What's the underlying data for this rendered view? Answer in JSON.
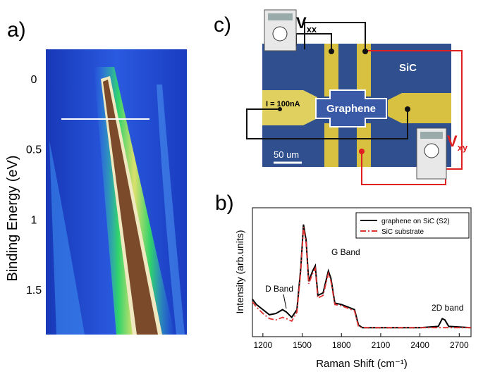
{
  "panel_a": {
    "label": "a)",
    "y_title": "Binding Energy (eV)",
    "ylim": [
      -0.21,
      1.82
    ],
    "yticks": [
      0,
      0.5,
      1,
      1.5
    ]
  },
  "panel_c": {
    "label": "c)",
    "vxx": {
      "symbol": "V",
      "subscript": "xx"
    },
    "vxy": {
      "symbol": "V",
      "subscript": "xy"
    },
    "substrate": "SiC",
    "sample": "Graphene",
    "current": "I = 100nA",
    "scale_bar": "50 um"
  },
  "chart_data": {
    "type": "line",
    "label": "b)",
    "x_label": "Raman Shift (cm⁻¹)",
    "y_label": "Intensity (arb.units)",
    "x": [
      1120,
      1150,
      1200,
      1250,
      1300,
      1350,
      1380,
      1420,
      1460,
      1490,
      1510,
      1530,
      1550,
      1580,
      1600,
      1620,
      1660,
      1700,
      1720,
      1750,
      1800,
      1850,
      1900,
      1930,
      1960,
      2100,
      2400,
      2540,
      2570,
      2590,
      2620,
      2790
    ],
    "series": [
      {
        "name": "graphene on SiC (S2)",
        "color": "#000000",
        "dash": "solid",
        "values": [
          0.29,
          0.25,
          0.21,
          0.17,
          0.18,
          0.21,
          0.19,
          0.15,
          0.21,
          0.54,
          0.87,
          0.75,
          0.43,
          0.51,
          0.55,
          0.32,
          0.34,
          0.51,
          0.45,
          0.26,
          0.25,
          0.23,
          0.21,
          0.09,
          0.07,
          0.07,
          0.07,
          0.08,
          0.14,
          0.13,
          0.08,
          0.07
        ]
      },
      {
        "name": "SiC substrate",
        "color": "#e03030",
        "dash": "dashdot",
        "values": [
          0.27,
          0.23,
          0.18,
          0.14,
          0.13,
          0.15,
          0.14,
          0.12,
          0.19,
          0.52,
          0.85,
          0.73,
          0.41,
          0.49,
          0.53,
          0.3,
          0.32,
          0.49,
          0.43,
          0.25,
          0.24,
          0.22,
          0.2,
          0.08,
          0.07,
          0.07,
          0.07,
          0.07,
          0.07,
          0.07,
          0.07,
          0.07
        ]
      }
    ],
    "xlim": [
      1120,
      2790
    ],
    "xticks": [
      1200,
      1500,
      1800,
      2100,
      2400,
      2700
    ],
    "ylim": [
      0,
      1
    ],
    "legend": "upper right",
    "annotations": [
      "D Band",
      "G Band",
      "2D band"
    ]
  }
}
